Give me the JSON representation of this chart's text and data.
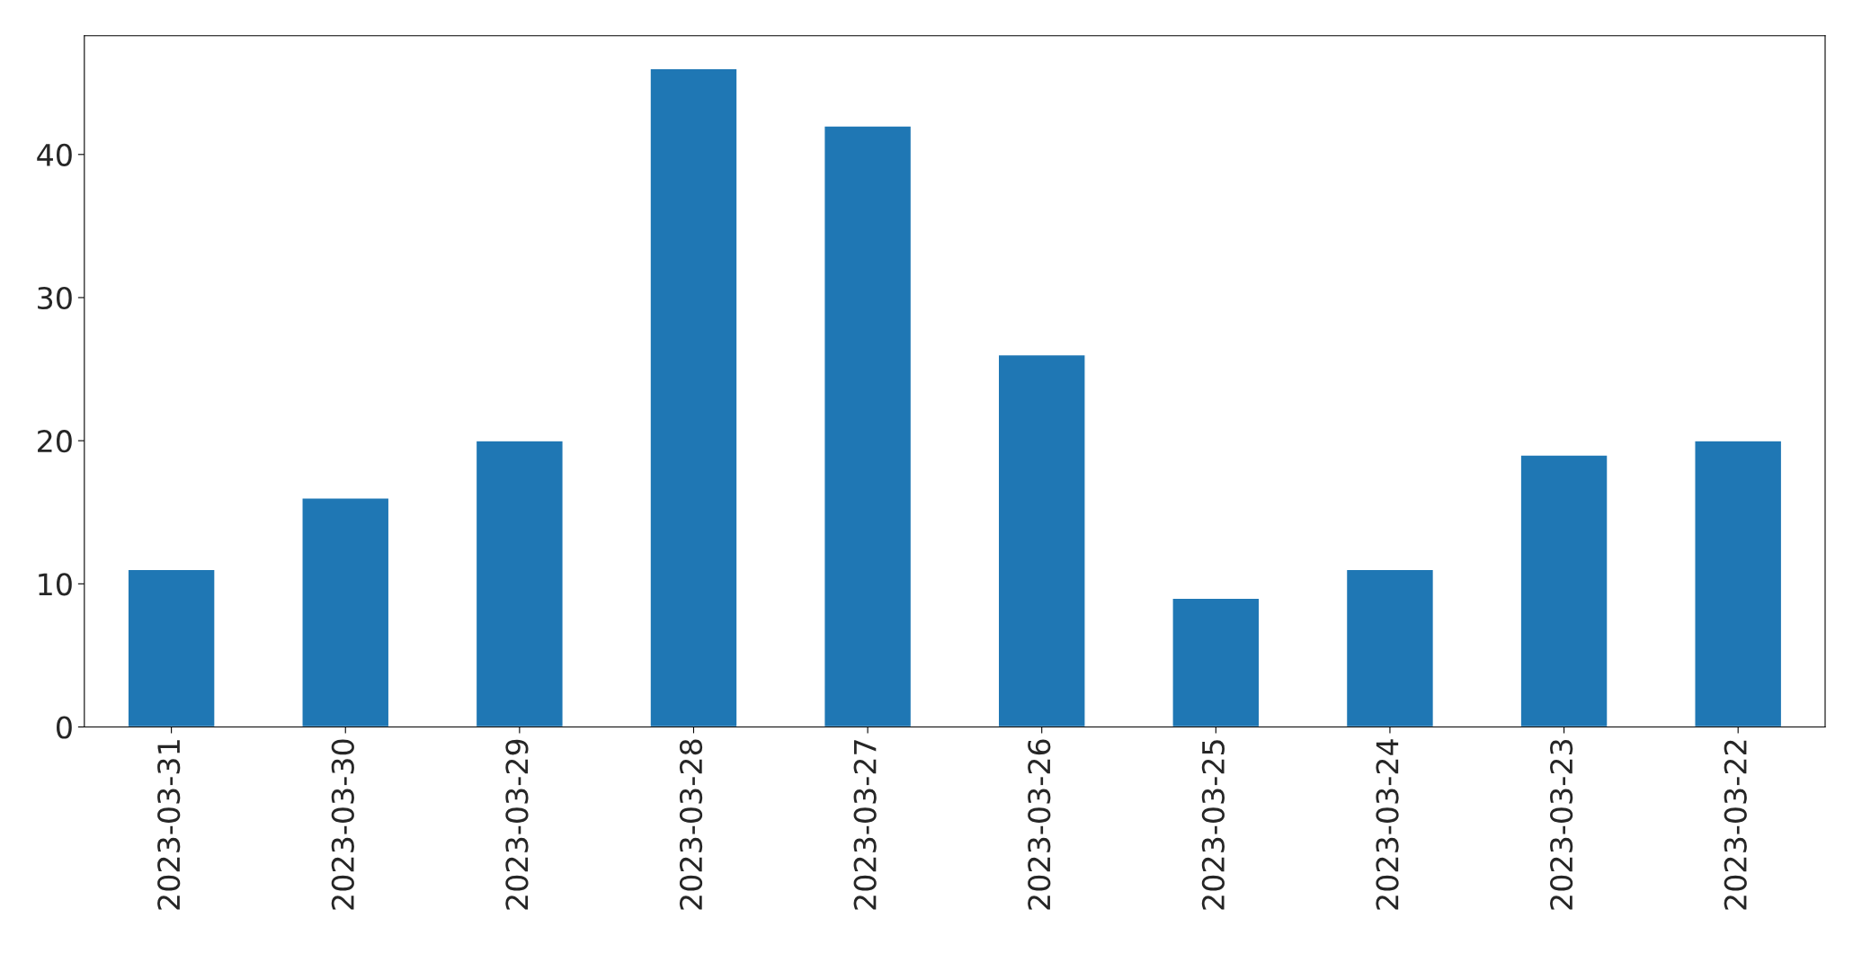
{
  "chart_data": {
    "type": "bar",
    "categories": [
      "2023-03-31",
      "2023-03-30",
      "2023-03-29",
      "2023-03-28",
      "2023-03-27",
      "2023-03-26",
      "2023-03-25",
      "2023-03-24",
      "2023-03-23",
      "2023-03-22"
    ],
    "values": [
      11,
      16,
      20,
      46,
      42,
      26,
      9,
      11,
      19,
      20
    ],
    "color": "#1f77b4",
    "ylim": [
      0,
      48.3
    ],
    "yticks": [
      0,
      10,
      20,
      30,
      40
    ],
    "grid": false,
    "legend": false
  }
}
